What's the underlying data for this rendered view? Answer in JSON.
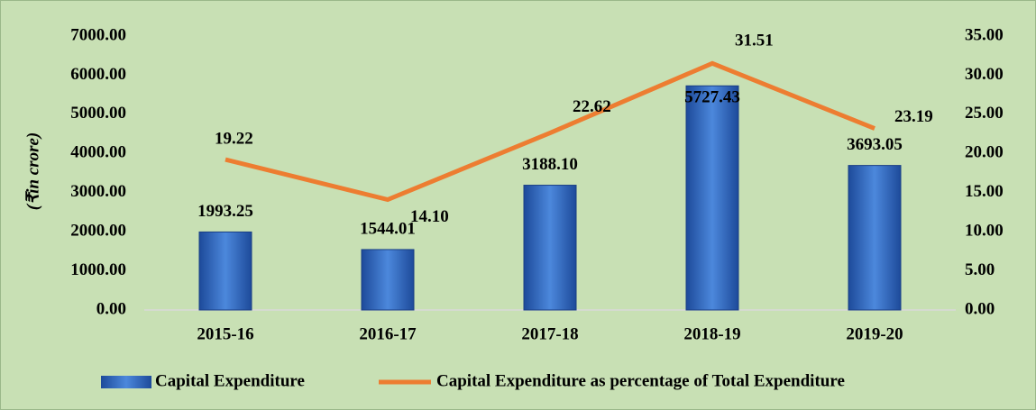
{
  "chart_data": {
    "type": "bar",
    "y_label": "(₹in crore)",
    "categories": [
      "2015-16",
      "2016-17",
      "2017-18",
      "2018-19",
      "2019-20"
    ],
    "series": [
      {
        "name": "Capital Expenditure",
        "type": "bar",
        "color": "#2f64c0",
        "values": [
          1993.25,
          1544.01,
          3188.1,
          5727.43,
          3693.05
        ],
        "value_labels": [
          "1993.25",
          "1544.01",
          "3188.10",
          "5727.43",
          "3693.05"
        ]
      },
      {
        "name": "Capital Expenditure as percentage of Total Expenditure",
        "type": "line",
        "axis": "y2",
        "color": "#ed7d31",
        "values": [
          19.22,
          14.1,
          22.62,
          31.51,
          23.19
        ],
        "value_labels": [
          "19.22",
          "14.10",
          "22.62",
          "31.51",
          "23.19"
        ]
      }
    ],
    "ylim": [
      0,
      7000
    ],
    "yticks": [
      {
        "value": 0,
        "label": "0.00"
      },
      {
        "value": 1000,
        "label": "1000.00"
      },
      {
        "value": 2000,
        "label": "2000.00"
      },
      {
        "value": 3000,
        "label": "3000.00"
      },
      {
        "value": 4000,
        "label": "4000.00"
      },
      {
        "value": 5000,
        "label": "5000.00"
      },
      {
        "value": 6000,
        "label": "6000.00"
      },
      {
        "value": 7000,
        "label": "7000.00"
      }
    ],
    "y2lim": [
      0,
      35
    ],
    "y2ticks": [
      {
        "value": 0,
        "label": "0.00"
      },
      {
        "value": 5,
        "label": "5.00"
      },
      {
        "value": 10,
        "label": "10.00"
      },
      {
        "value": 15,
        "label": "15.00"
      },
      {
        "value": 20,
        "label": "20.00"
      },
      {
        "value": 25,
        "label": "25.00"
      },
      {
        "value": 30,
        "label": "30.00"
      },
      {
        "value": 35,
        "label": "35.00"
      }
    ],
    "legend": "bottom",
    "grid": false
  }
}
